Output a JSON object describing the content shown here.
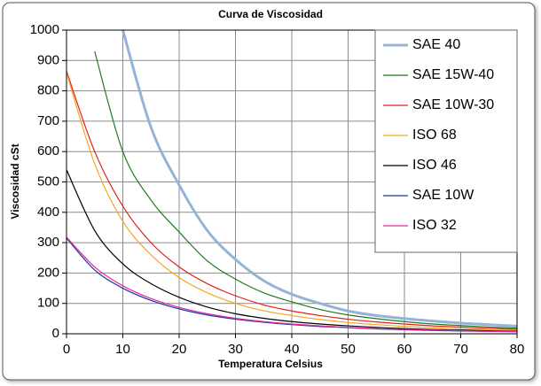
{
  "chart_data": {
    "type": "line",
    "title": "Curva de Viscosidad",
    "xlabel": "Temperatura Celsius",
    "ylabel": "Viscosidad cSt",
    "x": [
      0,
      5,
      10,
      15,
      20,
      25,
      30,
      35,
      40,
      45,
      50,
      55,
      60,
      65,
      70,
      75,
      80
    ],
    "xlim": [
      0,
      80
    ],
    "xticks": [
      0,
      10,
      20,
      30,
      40,
      50,
      60,
      70,
      80
    ],
    "ylim": [
      0,
      1000
    ],
    "yticks": [
      0,
      100,
      200,
      300,
      400,
      500,
      600,
      700,
      800,
      900,
      1000
    ],
    "grid": true,
    "legend": "upper right",
    "series": [
      {
        "name": "SAE 40",
        "color": "#95b3d7",
        "width": 3,
        "values": [
          null,
          null,
          1000,
          680,
          490,
          340,
          245,
          175,
          130,
          100,
          75,
          60,
          50,
          42,
          35,
          30,
          25
        ]
      },
      {
        "name": "SAE 15W-40",
        "color": "#1e7b1e",
        "width": 1.2,
        "values": [
          null,
          930,
          600,
          440,
          335,
          240,
          180,
          135,
          105,
          80,
          62,
          50,
          40,
          32,
          27,
          22,
          19
        ]
      },
      {
        "name": "SAE 10W-30",
        "color": "#e0201b",
        "width": 1.2,
        "values": [
          865,
          600,
          420,
          300,
          220,
          165,
          125,
          95,
          75,
          60,
          48,
          39,
          32,
          26,
          22,
          18,
          15
        ]
      },
      {
        "name": "ISO 68",
        "color": "#f5a623",
        "width": 1.2,
        "values": [
          860,
          560,
          370,
          260,
          185,
          135,
          100,
          76,
          60,
          47,
          37,
          30,
          24,
          20,
          16,
          13,
          11
        ]
      },
      {
        "name": "ISO 46",
        "color": "#000000",
        "width": 1.2,
        "values": [
          540,
          340,
          230,
          165,
          120,
          88,
          66,
          51,
          40,
          32,
          26,
          21,
          17,
          14,
          12,
          10,
          8
        ]
      },
      {
        "name": "SAE 10W",
        "color": "#2233aa",
        "width": 1.2,
        "values": [
          315,
          210,
          150,
          110,
          82,
          62,
          48,
          38,
          30,
          24,
          20,
          16,
          13,
          11,
          9,
          8,
          7
        ]
      },
      {
        "name": "ISO 32",
        "color": "#e6289e",
        "width": 1.2,
        "values": [
          318,
          220,
          158,
          116,
          87,
          66,
          51,
          40,
          32,
          26,
          21,
          17,
          14,
          12,
          10,
          8,
          7
        ]
      }
    ]
  }
}
